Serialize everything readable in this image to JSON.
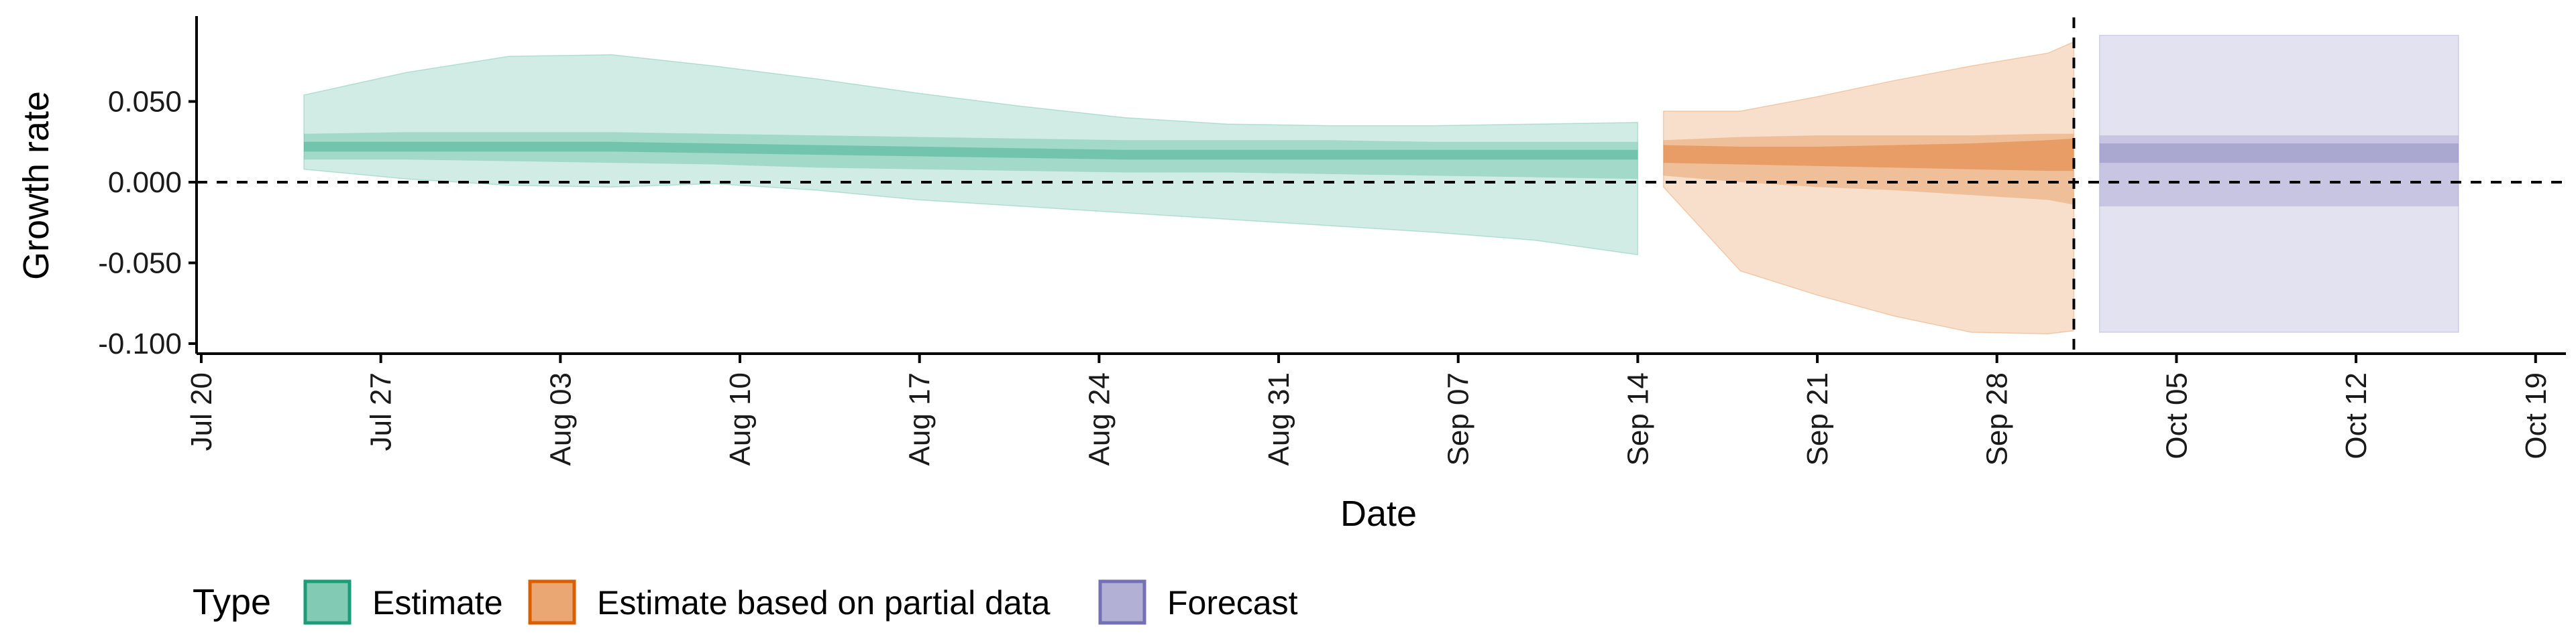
{
  "chart_data": {
    "type": "area",
    "xlabel": "Date",
    "ylabel": "Growth rate",
    "x_tick_labels": [
      "Jul 20",
      "Jul 27",
      "Aug 03",
      "Aug 10",
      "Aug 17",
      "Aug 24",
      "Aug 31",
      "Sep 07",
      "Sep 14",
      "Sep 21",
      "Sep 28",
      "Oct 05",
      "Oct 12",
      "Oct 19"
    ],
    "x_tick_dates": [
      "2020-07-20",
      "2020-07-27",
      "2020-08-03",
      "2020-08-10",
      "2020-08-17",
      "2020-08-24",
      "2020-08-31",
      "2020-09-07",
      "2020-09-14",
      "2020-09-21",
      "2020-09-28",
      "2020-10-05",
      "2020-10-12",
      "2020-10-19"
    ],
    "y_tick_labels": [
      "-0.100",
      "-0.050",
      "0.000",
      "0.050"
    ],
    "y_tick_values": [
      -0.1,
      -0.05,
      0.0,
      0.05
    ],
    "xlim": [
      "2020-07-20",
      "2020-10-20"
    ],
    "ylim": [
      -0.105,
      0.1
    ],
    "reference_lines": {
      "horizontal_y": 0.0,
      "vertical_x": "2020-10-01"
    },
    "legend": {
      "title": "Type",
      "position": "bottom-left",
      "items": [
        {
          "label": "Estimate",
          "fill": "#1b9e77"
        },
        {
          "label": "Estimate based on partial data",
          "fill": "#d95f02"
        },
        {
          "label": "Forecast",
          "fill": "#7570b3"
        }
      ]
    },
    "series": [
      {
        "name": "Estimate",
        "color": "#1b9e77",
        "x": [
          "2020-07-24",
          "2020-07-28",
          "2020-08-01",
          "2020-08-05",
          "2020-08-09",
          "2020-08-13",
          "2020-08-17",
          "2020-08-21",
          "2020-08-25",
          "2020-08-29",
          "2020-09-02",
          "2020-09-06",
          "2020-09-10",
          "2020-09-14"
        ],
        "median": [
          0.022,
          0.022,
          0.022,
          0.022,
          0.021,
          0.02,
          0.019,
          0.018,
          0.017,
          0.017,
          0.017,
          0.017,
          0.017,
          0.017
        ],
        "lower_50": [
          0.019,
          0.019,
          0.019,
          0.019,
          0.018,
          0.017,
          0.016,
          0.015,
          0.014,
          0.014,
          0.014,
          0.014,
          0.014,
          0.014
        ],
        "upper_50": [
          0.025,
          0.025,
          0.025,
          0.025,
          0.024,
          0.023,
          0.022,
          0.021,
          0.02,
          0.02,
          0.02,
          0.02,
          0.02,
          0.02
        ],
        "lower_20": [
          0.014,
          0.014,
          0.013,
          0.012,
          0.011,
          0.009,
          0.008,
          0.007,
          0.006,
          0.006,
          0.005,
          0.004,
          0.003,
          0.002
        ],
        "upper_20": [
          0.03,
          0.031,
          0.031,
          0.031,
          0.03,
          0.029,
          0.028,
          0.027,
          0.026,
          0.026,
          0.026,
          0.025,
          0.025,
          0.025
        ],
        "lower_90": [
          0.008,
          0.002,
          -0.002,
          -0.003,
          -0.001,
          -0.005,
          -0.011,
          -0.015,
          -0.019,
          -0.023,
          -0.027,
          -0.031,
          -0.036,
          -0.045
        ],
        "upper_90": [
          0.054,
          0.068,
          0.078,
          0.079,
          0.072,
          0.064,
          0.055,
          0.047,
          0.04,
          0.036,
          0.035,
          0.035,
          0.036,
          0.037
        ]
      },
      {
        "name": "Estimate based on partial data",
        "color": "#d95f02",
        "x": [
          "2020-09-15",
          "2020-09-18",
          "2020-09-21",
          "2020-09-24",
          "2020-09-27",
          "2020-09-30",
          "2020-10-01"
        ],
        "median": [
          0.017,
          0.016,
          0.016,
          0.016,
          0.016,
          0.017,
          0.018
        ],
        "lower_50": [
          0.012,
          0.011,
          0.01,
          0.009,
          0.008,
          0.007,
          0.007
        ],
        "upper_50": [
          0.023,
          0.022,
          0.022,
          0.023,
          0.024,
          0.026,
          0.027
        ],
        "lower_20": [
          0.004,
          0.0,
          -0.003,
          -0.005,
          -0.008,
          -0.011,
          -0.014
        ],
        "upper_20": [
          0.026,
          0.028,
          0.029,
          0.029,
          0.029,
          0.03,
          0.03
        ],
        "lower_90": [
          -0.003,
          -0.055,
          -0.07,
          -0.083,
          -0.093,
          -0.094,
          -0.092
        ],
        "upper_90": [
          0.044,
          0.044,
          0.053,
          0.063,
          0.072,
          0.08,
          0.087
        ]
      },
      {
        "name": "Forecast",
        "color": "#7570b3",
        "x": [
          "2020-10-02",
          "2020-10-16"
        ],
        "median": [
          0.018,
          0.018
        ],
        "lower_50": [
          0.012,
          0.012
        ],
        "upper_50": [
          0.024,
          0.024
        ],
        "lower_20": [
          -0.015,
          -0.015
        ],
        "upper_20": [
          0.029,
          0.029
        ],
        "lower_90": [
          -0.093,
          -0.093
        ],
        "upper_90": [
          0.091,
          0.091
        ]
      }
    ]
  }
}
